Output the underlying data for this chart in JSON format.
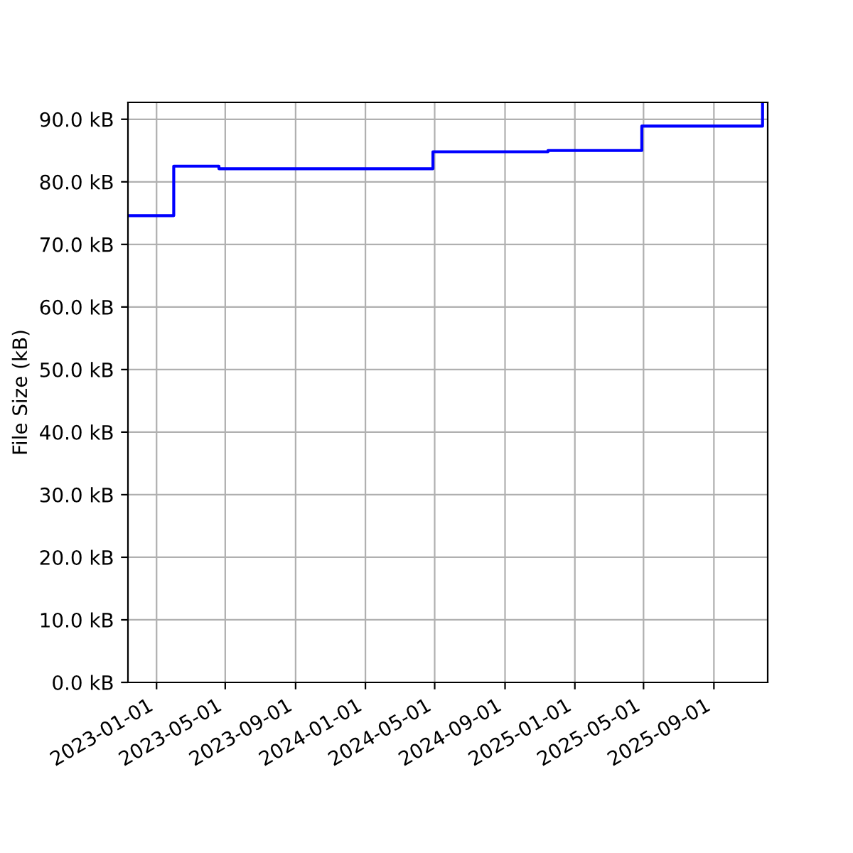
{
  "chart_data": {
    "type": "step",
    "ylabel": "File Size (kB)",
    "x": [
      "2022-11-12",
      "2023-01-31",
      "2023-04-20",
      "2024-04-28",
      "2024-11-15",
      "2025-04-28",
      "2025-11-25"
    ],
    "series": [
      {
        "color": "#0000ff",
        "values": [
          74.6,
          82.5,
          82.1,
          84.8,
          85.0,
          88.9,
          92.7
        ]
      }
    ],
    "xlim": [
      "2022-11-12",
      "2025-12-04"
    ],
    "xticks": [
      "2023-01-01",
      "2023-05-01",
      "2023-09-01",
      "2024-01-01",
      "2024-05-01",
      "2024-09-01",
      "2025-01-01",
      "2025-05-01",
      "2025-09-01"
    ],
    "ylim": [
      0,
      92.7
    ],
    "yticks": [
      {
        "value": 0,
        "label": "0.0 kB"
      },
      {
        "value": 10,
        "label": "10.0 kB"
      },
      {
        "value": 20,
        "label": "20.0 kB"
      },
      {
        "value": 30,
        "label": "30.0 kB"
      },
      {
        "value": 40,
        "label": "40.0 kB"
      },
      {
        "value": 50,
        "label": "50.0 kB"
      },
      {
        "value": 60,
        "label": "60.0 kB"
      },
      {
        "value": 70,
        "label": "70.0 kB"
      },
      {
        "value": 80,
        "label": "80.0 kB"
      },
      {
        "value": 90,
        "label": "90.0 kB"
      }
    ],
    "grid": true
  }
}
